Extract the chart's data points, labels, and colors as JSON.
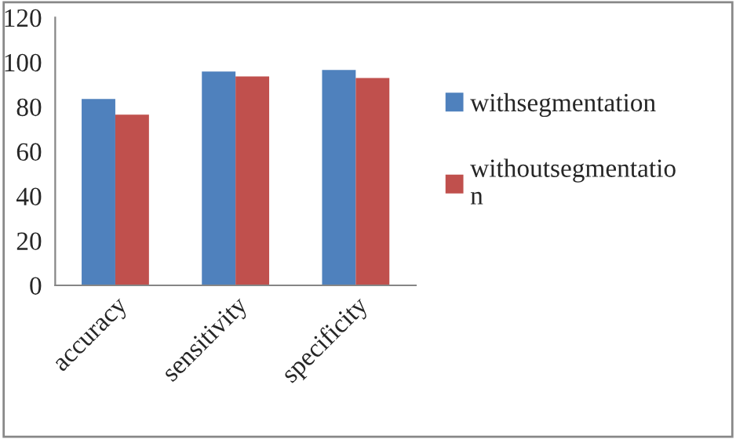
{
  "chart_data": {
    "type": "bar",
    "categories": [
      "accuracy",
      "sensitivity",
      "specificity"
    ],
    "series": [
      {
        "name": "withsegmentation",
        "color": "#4f81bd",
        "values": [
          83.5,
          95.8,
          96.5
        ]
      },
      {
        "name": "withoutsegmentation",
        "color": "#c0504d",
        "values": [
          76.5,
          93.6,
          92.9
        ]
      }
    ],
    "ylim": [
      0,
      120
    ],
    "yticks": [
      0,
      20,
      40,
      60,
      80,
      100,
      120
    ],
    "grid": false,
    "legend": "right"
  }
}
